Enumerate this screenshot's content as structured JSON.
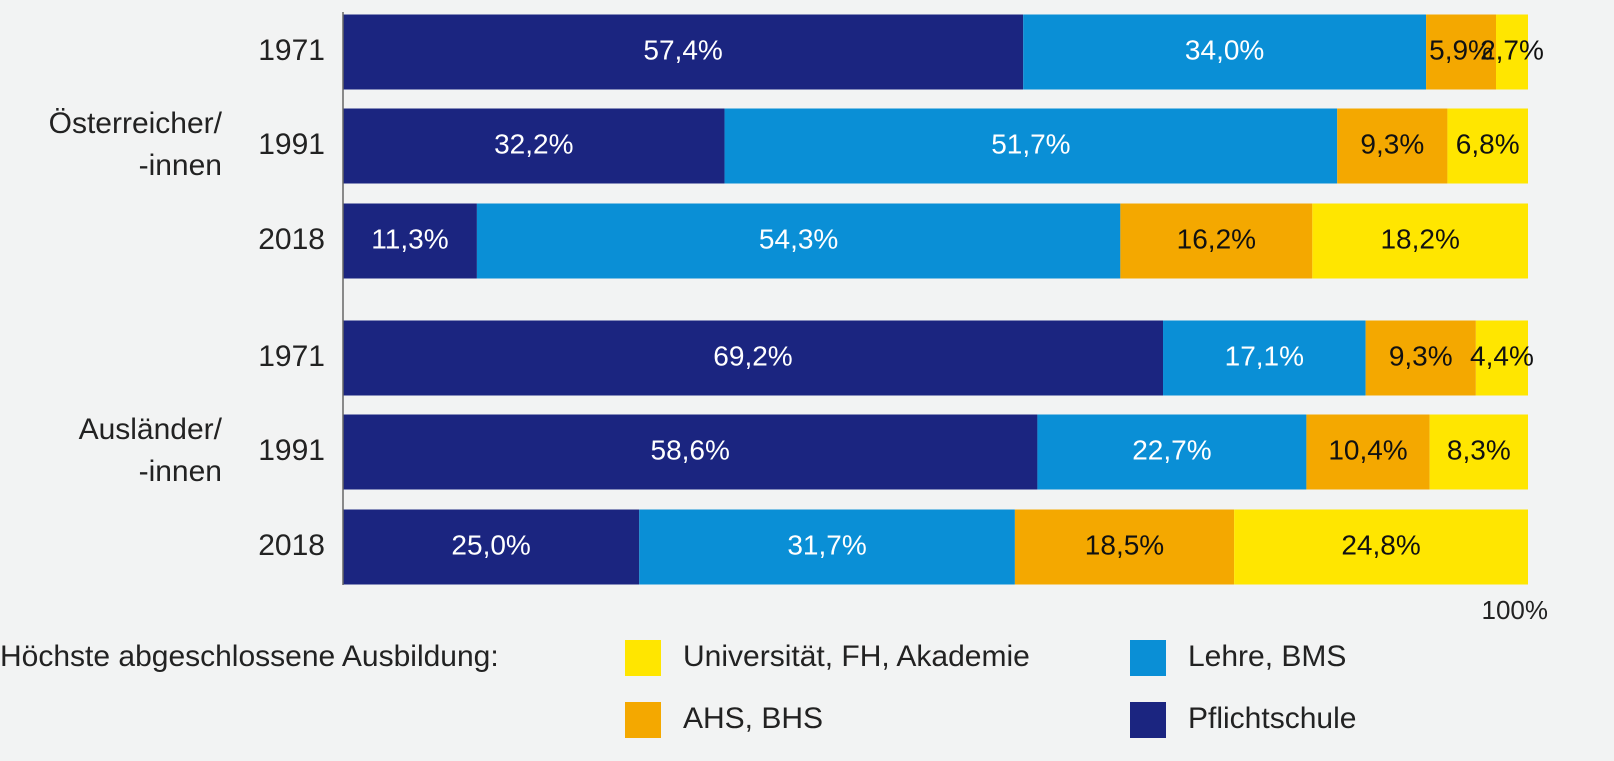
{
  "chart_data": {
    "type": "stacked-bar-horizontal",
    "categories": [
      "1971",
      "1991",
      "2018",
      "1971",
      "1991",
      "2018"
    ],
    "groups": [
      {
        "label": [
          "Österreicher/",
          "-innen"
        ]
      },
      {
        "label": [
          "Ausländer/",
          "-innen"
        ]
      }
    ],
    "series": [
      {
        "name": "Pflichtschule",
        "color": "#1b2580",
        "text_color": "#ffffff",
        "values": [
          57.4,
          32.2,
          11.3,
          69.2,
          58.6,
          25.0
        ],
        "value_labels": [
          "57,4%",
          "32,2%",
          "11,3%",
          "69,2%",
          "58,6%",
          "25,0%"
        ]
      },
      {
        "name": "Lehre, BMS",
        "color": "#0a8fd6",
        "text_color": "#ffffff",
        "values": [
          34.0,
          51.7,
          54.3,
          17.1,
          22.7,
          31.7
        ],
        "value_labels": [
          "34,0%",
          "51,7%",
          "54,3%",
          "17,1%",
          "22,7%",
          "31,7%"
        ]
      },
      {
        "name": "AHS, BHS",
        "color": "#f4a800",
        "text_color": "#111111",
        "values": [
          5.9,
          9.3,
          16.2,
          9.3,
          10.4,
          18.5
        ],
        "value_labels": [
          "5,9%",
          "9,3%",
          "16,2%",
          "9,3%",
          "10,4%",
          "18,5%"
        ]
      },
      {
        "name": "Universität, FH, Akademie",
        "color": "#ffe600",
        "text_color": "#111111",
        "values": [
          2.7,
          6.8,
          18.2,
          4.4,
          8.3,
          24.8
        ],
        "value_labels": [
          "2,7%",
          "6,8%",
          "18,2%",
          "4,4%",
          "8,3%",
          "24,8%"
        ]
      }
    ],
    "xlim": [
      0,
      100
    ],
    "xticks": [
      {
        "value": 100,
        "label": "100%"
      }
    ],
    "legend_title": "Höchste abgeschlossene Ausbildung:"
  }
}
